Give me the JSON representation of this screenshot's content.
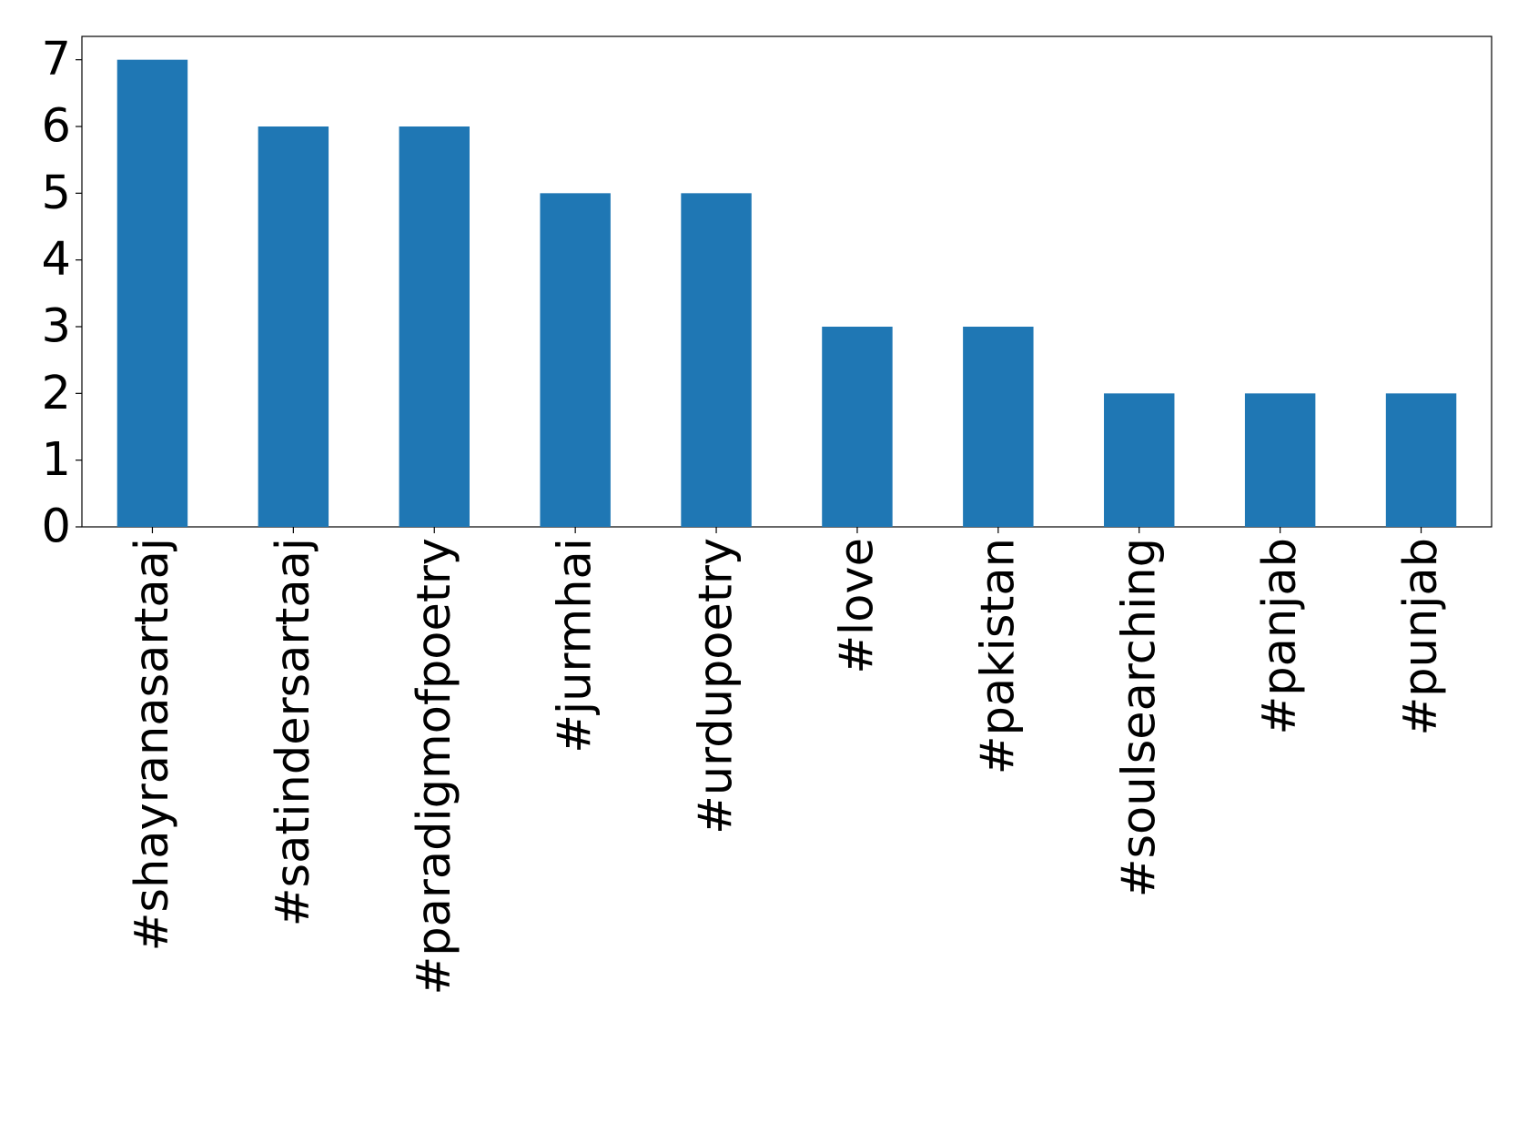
{
  "chart_data": {
    "type": "bar",
    "categories": [
      "#shayranasartaaj",
      "#satindersartaaj",
      "#paradigmofpoetry",
      "#jurmhai",
      "#urdupoetry",
      "#love",
      "#pakistan",
      "#soulsearching",
      "#panjab",
      "#punjab"
    ],
    "values": [
      7,
      6,
      6,
      5,
      5,
      3,
      3,
      2,
      2,
      2
    ],
    "color": "#1f77b4",
    "ylim": [
      0,
      7.35
    ],
    "yticks": [
      0,
      1,
      2,
      3,
      4,
      5,
      6,
      7
    ],
    "grid": false
  }
}
